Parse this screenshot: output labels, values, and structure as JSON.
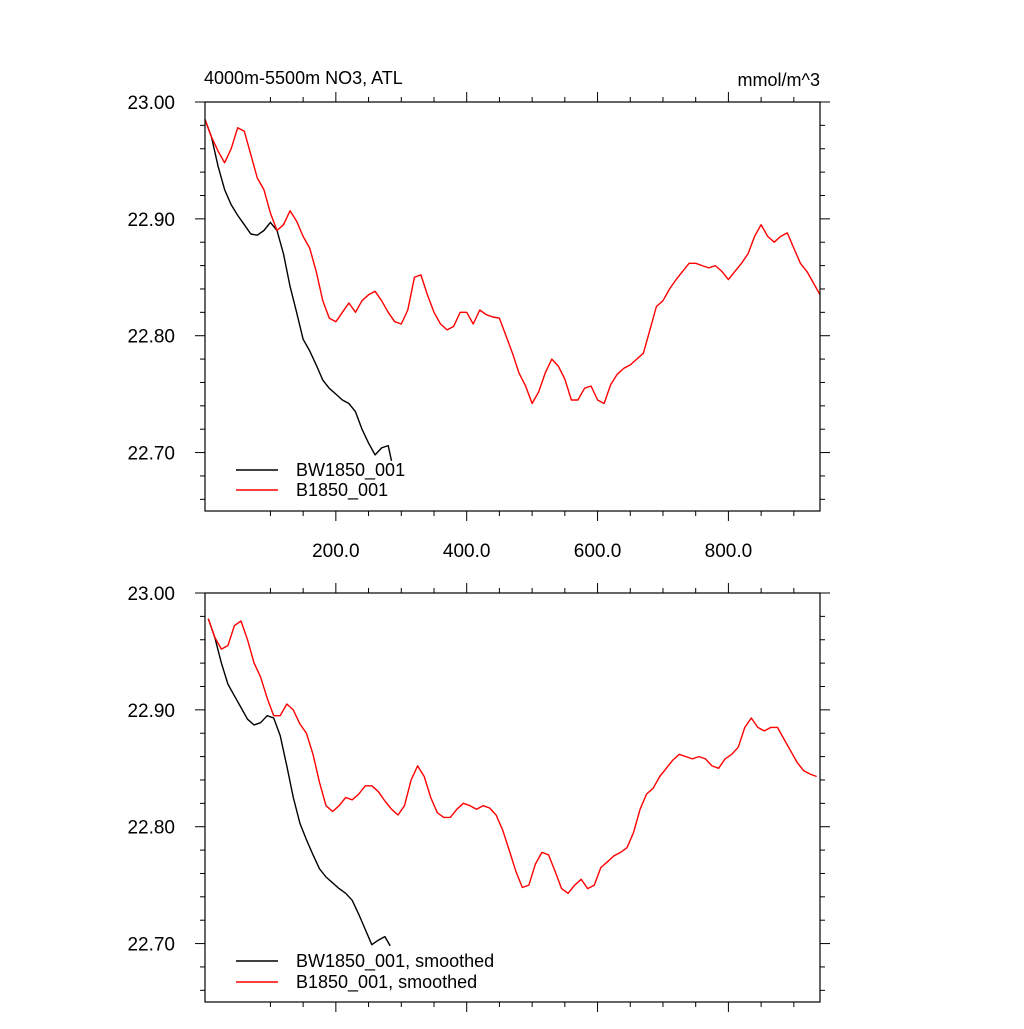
{
  "chart_data": [
    {
      "type": "line",
      "title": "4000m-5500m NO3, ATL",
      "units": "mmol/m^3",
      "xlim": [
        0,
        940
      ],
      "ylim": [
        22.65,
        23.0
      ],
      "yticks": [
        23.0,
        22.9,
        22.8,
        22.7
      ],
      "ytick_labels": [
        "23.00",
        "22.90",
        "22.80",
        "22.70"
      ],
      "xticks": [
        200,
        400,
        600,
        800
      ],
      "xtick_labels": [
        "200.0",
        "400.0",
        "600.0",
        "800.0"
      ],
      "legend_position": "bottom-left",
      "series": [
        {
          "name": "BW1850_001",
          "color": "#000000",
          "x": [
            0,
            10,
            20,
            30,
            40,
            50,
            60,
            70,
            80,
            90,
            100,
            110,
            120,
            130,
            140,
            150,
            160,
            170,
            180,
            190,
            200,
            210,
            220,
            230,
            240,
            250,
            260,
            270,
            280,
            285
          ],
          "y": [
            22.985,
            22.97,
            22.945,
            22.925,
            22.912,
            22.903,
            22.895,
            22.887,
            22.886,
            22.89,
            22.897,
            22.89,
            22.87,
            22.842,
            22.82,
            22.797,
            22.787,
            22.775,
            22.762,
            22.755,
            22.75,
            22.745,
            22.742,
            22.735,
            22.72,
            22.708,
            22.698,
            22.704,
            22.706,
            22.693
          ]
        },
        {
          "name": "B1850_001",
          "color": "#ff0000",
          "x": [
            0,
            10,
            20,
            30,
            40,
            50,
            60,
            70,
            80,
            90,
            100,
            110,
            120,
            130,
            140,
            150,
            160,
            170,
            180,
            190,
            200,
            210,
            220,
            230,
            240,
            250,
            260,
            270,
            280,
            290,
            300,
            310,
            320,
            330,
            340,
            350,
            360,
            370,
            380,
            390,
            400,
            410,
            420,
            430,
            440,
            450,
            460,
            470,
            480,
            490,
            500,
            510,
            520,
            530,
            540,
            550,
            560,
            570,
            580,
            590,
            600,
            610,
            620,
            630,
            640,
            650,
            660,
            670,
            680,
            690,
            700,
            710,
            720,
            730,
            740,
            750,
            760,
            770,
            780,
            790,
            800,
            810,
            820,
            830,
            840,
            850,
            860,
            870,
            880,
            890,
            900,
            910,
            920,
            930,
            940
          ],
          "y": [
            22.985,
            22.97,
            22.958,
            22.948,
            22.96,
            22.978,
            22.975,
            22.955,
            22.935,
            22.925,
            22.905,
            22.89,
            22.895,
            22.907,
            22.898,
            22.885,
            22.875,
            22.855,
            22.83,
            22.815,
            22.812,
            22.82,
            22.828,
            22.82,
            22.83,
            22.835,
            22.838,
            22.83,
            22.82,
            22.812,
            22.81,
            22.822,
            22.85,
            22.852,
            22.835,
            22.82,
            22.81,
            22.805,
            22.808,
            22.82,
            22.82,
            22.81,
            22.822,
            22.818,
            22.816,
            22.815,
            22.8,
            22.785,
            22.768,
            22.757,
            22.742,
            22.752,
            22.768,
            22.78,
            22.774,
            22.763,
            22.745,
            22.745,
            22.755,
            22.757,
            22.745,
            22.742,
            22.758,
            22.767,
            22.772,
            22.775,
            22.78,
            22.785,
            22.805,
            22.825,
            22.83,
            22.84,
            22.848,
            22.855,
            22.862,
            22.862,
            22.86,
            22.858,
            22.86,
            22.855,
            22.848,
            22.855,
            22.862,
            22.87,
            22.885,
            22.895,
            22.885,
            22.88,
            22.885,
            22.888,
            22.875,
            22.862,
            22.855,
            22.845,
            22.835
          ]
        }
      ]
    },
    {
      "type": "line",
      "xlim": [
        0,
        940
      ],
      "ylim": [
        22.65,
        23.0
      ],
      "yticks": [
        23.0,
        22.9,
        22.8,
        22.7
      ],
      "ytick_labels": [
        "23.00",
        "22.90",
        "22.80",
        "22.70"
      ],
      "xticks": [
        200,
        400,
        600,
        800
      ],
      "legend_position": "bottom-left",
      "series": [
        {
          "name": "BW1850_001, smoothed",
          "color": "#000000",
          "x": [
            5,
            15,
            25,
            35,
            45,
            55,
            65,
            75,
            85,
            95,
            105,
            115,
            125,
            135,
            145,
            155,
            165,
            175,
            185,
            195,
            205,
            215,
            225,
            235,
            245,
            255,
            265,
            275,
            283
          ],
          "y": [
            22.978,
            22.962,
            22.94,
            22.922,
            22.912,
            22.902,
            22.892,
            22.887,
            22.889,
            22.895,
            22.893,
            22.878,
            22.852,
            22.825,
            22.803,
            22.789,
            22.776,
            22.764,
            22.757,
            22.752,
            22.747,
            22.743,
            22.737,
            22.725,
            22.712,
            22.699,
            22.703,
            22.706,
            22.698
          ]
        },
        {
          "name": "B1850_001, smoothed",
          "color": "#ff0000",
          "x": [
            5,
            15,
            25,
            35,
            45,
            55,
            65,
            75,
            85,
            95,
            105,
            115,
            125,
            135,
            145,
            155,
            165,
            175,
            185,
            195,
            205,
            215,
            225,
            235,
            245,
            255,
            265,
            275,
            285,
            295,
            305,
            315,
            325,
            335,
            345,
            355,
            365,
            375,
            385,
            395,
            405,
            415,
            425,
            435,
            445,
            455,
            465,
            475,
            485,
            495,
            505,
            515,
            525,
            535,
            545,
            555,
            565,
            575,
            585,
            595,
            605,
            615,
            625,
            635,
            645,
            655,
            665,
            675,
            685,
            695,
            705,
            715,
            725,
            735,
            745,
            755,
            765,
            775,
            785,
            795,
            805,
            815,
            825,
            835,
            845,
            855,
            865,
            875,
            885,
            895,
            905,
            915,
            925,
            935
          ],
          "y": [
            22.978,
            22.962,
            22.952,
            22.955,
            22.972,
            22.976,
            22.96,
            22.94,
            22.928,
            22.91,
            22.895,
            22.895,
            22.905,
            22.9,
            22.888,
            22.88,
            22.862,
            22.838,
            22.818,
            22.813,
            22.818,
            22.825,
            22.823,
            22.828,
            22.835,
            22.835,
            22.83,
            22.822,
            22.815,
            22.81,
            22.818,
            22.84,
            22.852,
            22.843,
            22.825,
            22.812,
            22.808,
            22.808,
            22.815,
            22.82,
            22.818,
            22.815,
            22.818,
            22.816,
            22.81,
            22.797,
            22.78,
            22.762,
            22.748,
            22.75,
            22.768,
            22.778,
            22.776,
            22.762,
            22.747,
            22.743,
            22.75,
            22.755,
            22.747,
            22.75,
            22.765,
            22.77,
            22.775,
            22.778,
            22.782,
            22.795,
            22.815,
            22.828,
            22.833,
            22.843,
            22.85,
            22.857,
            22.862,
            22.86,
            22.858,
            22.86,
            22.858,
            22.852,
            22.85,
            22.858,
            22.862,
            22.868,
            22.885,
            22.893,
            22.885,
            22.882,
            22.885,
            22.885,
            22.875,
            22.865,
            22.855,
            22.848,
            22.845,
            22.843
          ]
        }
      ]
    }
  ]
}
